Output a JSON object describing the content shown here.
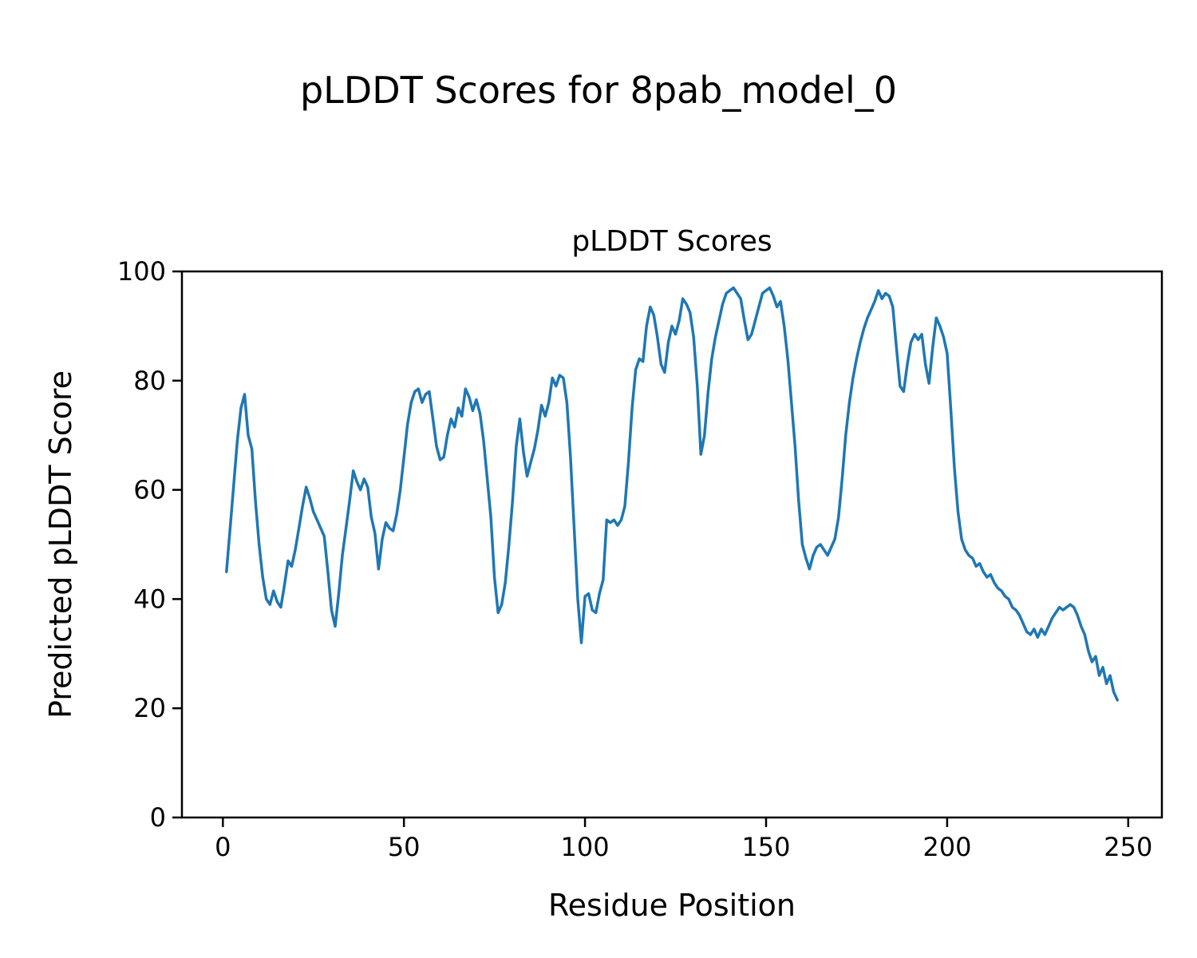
{
  "figure": {
    "suptitle": "pLDDT Scores for 8pab_model_0",
    "background_color": "#ffffff"
  },
  "chart_data": {
    "type": "line",
    "title": "pLDDT Scores",
    "xlabel": "Residue Position",
    "ylabel": "Predicted pLDDT Score",
    "line_color": "#1f77b4",
    "axis_color": "#000000",
    "grid": false,
    "xlim": [
      -11.3,
      259.3
    ],
    "ylim": [
      0,
      100
    ],
    "x_ticks": [
      0,
      50,
      100,
      150,
      200,
      250
    ],
    "y_ticks": [
      0,
      20,
      40,
      60,
      80,
      100
    ],
    "x_start": 1,
    "x_step": 1,
    "series": [
      {
        "name": "pLDDT",
        "values": [
          45,
          53,
          61,
          69,
          75,
          77.5,
          70,
          67.5,
          58,
          50,
          44,
          40,
          39,
          41.5,
          39.5,
          38.5,
          42.5,
          47,
          46,
          49,
          53,
          57,
          60.5,
          58.5,
          56,
          54.5,
          53,
          51.5,
          45,
          38,
          35,
          41,
          48,
          53,
          58,
          63.5,
          61.5,
          60,
          62,
          60.5,
          55,
          52,
          45.5,
          51,
          54,
          53,
          52.5,
          55.5,
          60,
          66,
          72,
          76,
          78,
          78.5,
          76,
          77.5,
          78,
          73,
          68,
          65.5,
          66,
          70,
          73,
          71.5,
          75,
          73.5,
          78.5,
          77,
          74.5,
          76.5,
          74,
          69,
          62,
          55,
          44,
          37.5,
          39,
          43,
          50,
          58,
          68,
          73,
          67,
          62.5,
          65,
          67.5,
          71,
          75.5,
          73.5,
          76,
          80.5,
          79,
          81,
          80.5,
          76,
          66,
          53,
          40,
          32,
          40.5,
          41,
          38,
          37.5,
          41,
          43.5,
          54.5,
          54,
          54.5,
          53.5,
          54.5,
          57,
          65,
          75,
          82,
          84,
          83.5,
          90,
          93.5,
          92,
          88,
          83,
          81.5,
          87,
          90,
          88.5,
          91,
          95,
          94,
          92.5,
          88,
          79,
          66.5,
          70,
          78,
          84,
          88,
          91,
          94,
          96,
          96.5,
          97,
          96,
          95,
          91,
          87.5,
          88.5,
          91,
          93.5,
          96,
          96.5,
          97,
          95.5,
          93.5,
          94.5,
          90,
          84,
          76,
          68,
          58,
          50,
          47.5,
          45.5,
          48,
          49.5,
          50,
          49,
          48,
          49.5,
          51,
          55,
          62,
          70,
          76,
          80.5,
          84,
          87,
          89.5,
          91.5,
          93,
          94.5,
          96.5,
          95,
          96,
          95.5,
          93.5,
          86,
          79,
          78,
          83,
          87,
          88.5,
          87.5,
          88.5,
          83,
          79.5,
          86,
          91.5,
          90,
          88,
          85,
          75,
          64,
          56,
          51,
          49,
          48,
          47.5,
          46,
          46.5,
          45,
          44,
          44.5,
          43,
          42,
          41.5,
          40.5,
          40,
          38.5,
          38,
          37,
          35.5,
          34,
          33.5,
          34.5,
          33,
          34.5,
          33.5,
          35,
          36.5,
          37.5,
          38.5,
          38,
          38.5,
          39,
          38.5,
          37,
          35,
          33.5,
          30.5,
          28.5,
          29.5,
          26,
          27.5,
          24.5,
          26,
          23,
          21.5
        ]
      }
    ]
  }
}
